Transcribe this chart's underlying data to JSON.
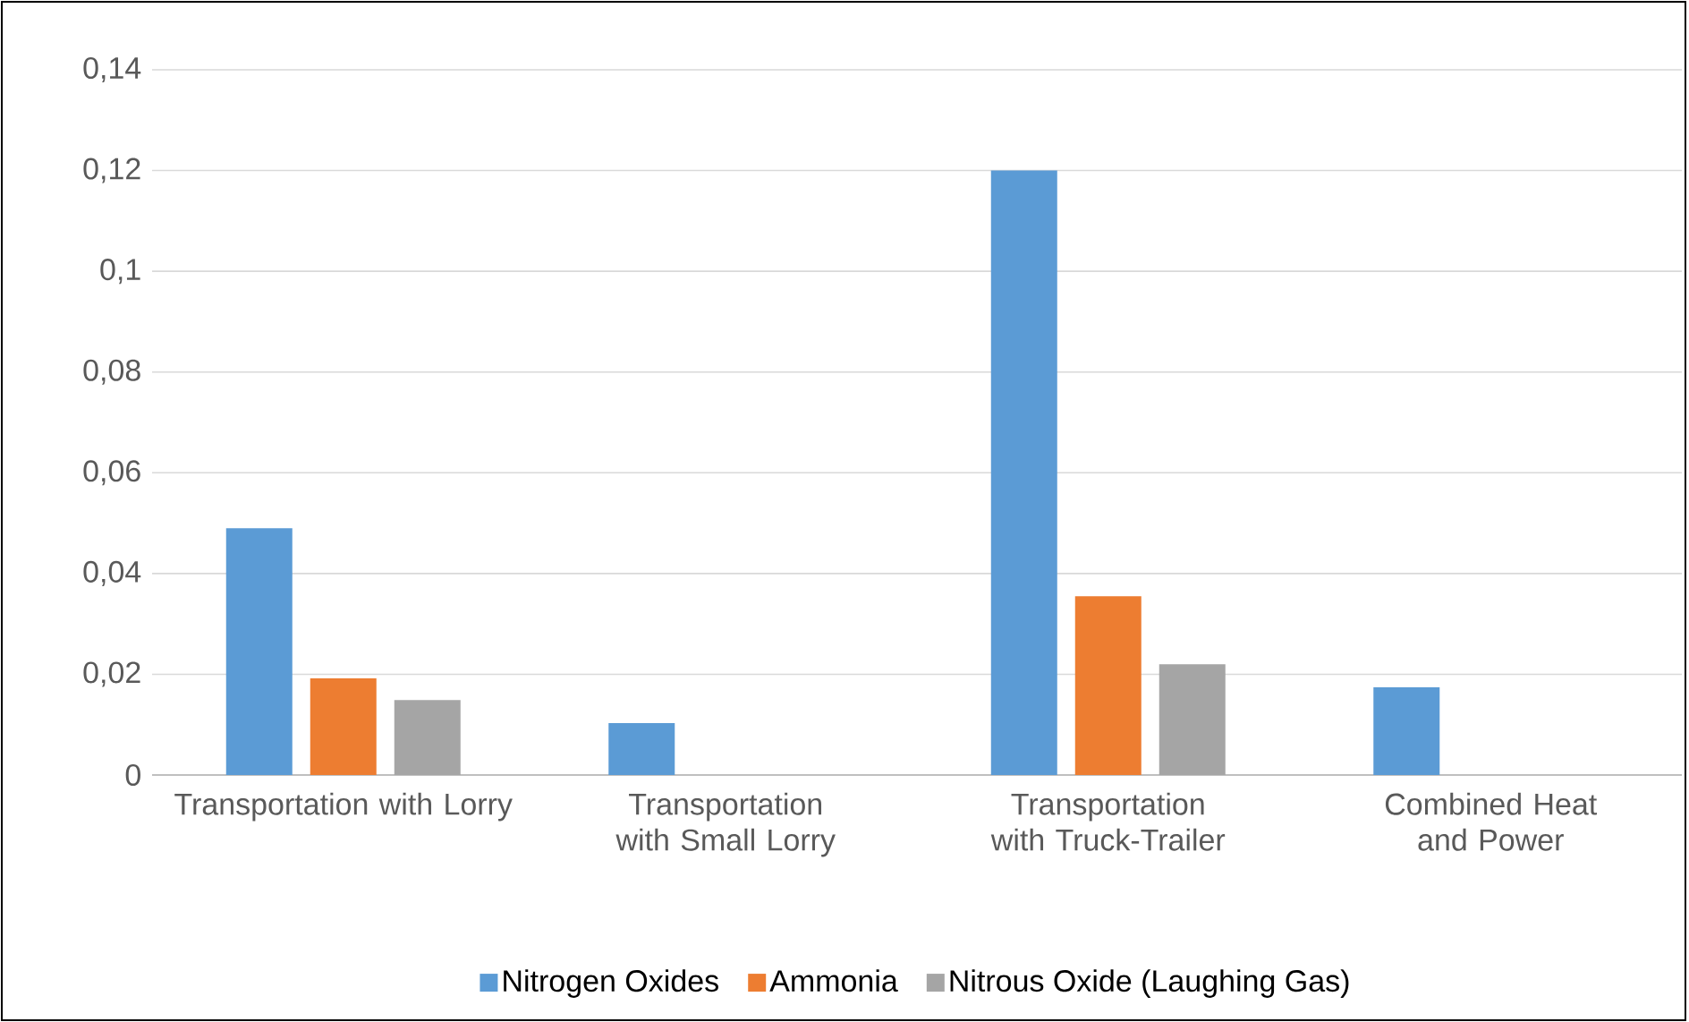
{
  "chart_data": {
    "type": "bar",
    "categories": [
      "Transportation with Lorry",
      "Transportation with Small Lorry",
      "Transportation with Truck-Trailer",
      "Combined Heat and Power"
    ],
    "series": [
      {
        "name": "Nitrogen Oxides",
        "color": "#5b9bd5",
        "values": [
          0.049,
          0.0103,
          0.12,
          0.0174
        ]
      },
      {
        "name": "Ammonia",
        "color": "#ed7d31",
        "values": [
          0.0192,
          null,
          0.0355,
          null
        ]
      },
      {
        "name": "Nitrous Oxide (Laughing Gas)",
        "color": "#a5a5a5",
        "values": [
          0.0149,
          null,
          0.022,
          null
        ]
      }
    ],
    "ylim": [
      0,
      0.14
    ],
    "yticks": [
      0,
      {
        "value": 0.02,
        "label": "0,02"
      },
      {
        "value": 0.04,
        "label": "0,04"
      },
      {
        "value": 0.06,
        "label": "0,06"
      },
      {
        "value": 0.08,
        "label": "0,08"
      },
      {
        "value": 0.1,
        "label": "0,1"
      },
      {
        "value": 0.12,
        "label": "0,12"
      },
      {
        "value": 0.14,
        "label": "0,14"
      }
    ],
    "grid": "y",
    "legend": "bottom"
  }
}
